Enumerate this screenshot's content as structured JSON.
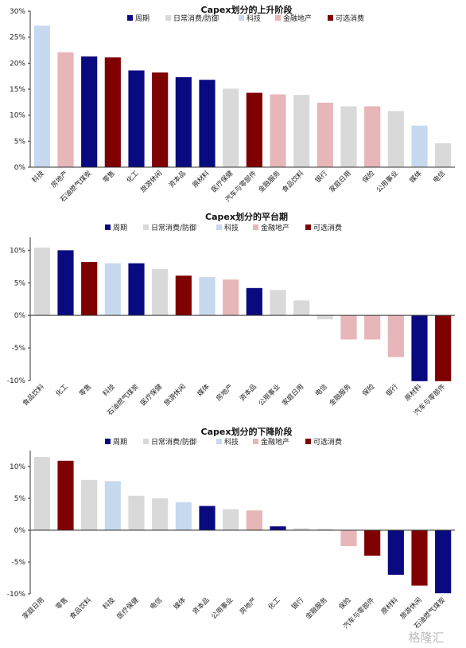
{
  "colors": {
    "周期": "#0a0a80",
    "日常消费/防御": "#d9d9d9",
    "科技": "#c6d9ef",
    "金融地产": "#e6b6b8",
    "可选消费": "#7f0000"
  },
  "watermark": "格隆汇",
  "chart_data": [
    {
      "type": "bar",
      "title": "Capex划分的上升阶段",
      "legend": [
        "周期",
        "日常消费/防御",
        "科技",
        "金融地产",
        "可选消费"
      ],
      "ylim": [
        0,
        30
      ],
      "yticks": [
        0,
        5,
        10,
        15,
        20,
        25,
        30
      ],
      "ytick_labels": [
        "0%",
        "5%",
        "10%",
        "15%",
        "20%",
        "25%",
        "30%"
      ],
      "categories": [
        "科技",
        "房地产",
        "石油燃气煤炭",
        "零售",
        "化工",
        "旅游休闲",
        "资本品",
        "原材料",
        "医疗保健",
        "汽车与零部件",
        "金融服务",
        "食品饮料",
        "银行",
        "家庭日用",
        "保险",
        "公用事业",
        "媒体",
        "电信"
      ],
      "values": [
        27.2,
        22.1,
        21.3,
        21.1,
        18.6,
        18.2,
        17.3,
        16.8,
        15.1,
        14.3,
        14.0,
        13.9,
        12.4,
        11.7,
        11.7,
        10.8,
        8.0,
        4.6
      ],
      "groups": [
        "科技",
        "金融地产",
        "周期",
        "可选消费",
        "周期",
        "可选消费",
        "周期",
        "周期",
        "日常消费/防御",
        "可选消费",
        "金融地产",
        "日常消费/防御",
        "金融地产",
        "日常消费/防御",
        "金融地产",
        "日常消费/防御",
        "科技",
        "日常消费/防御"
      ]
    },
    {
      "type": "bar",
      "title": "Capex划分的平台期",
      "legend": [
        "周期",
        "日常消费/防御",
        "科技",
        "金融地产",
        "可选消费"
      ],
      "ylim": [
        -10,
        12
      ],
      "yticks": [
        -10,
        -5,
        0,
        5,
        10
      ],
      "ytick_labels": [
        "-10%",
        "-5%",
        "0%",
        "5%",
        "10%"
      ],
      "categories": [
        "食品饮料",
        "化工",
        "零售",
        "科技",
        "石油燃气煤炭",
        "医疗保健",
        "旅游休闲",
        "媒体",
        "房地产",
        "资本品",
        "公用事业",
        "家庭日用",
        "电信",
        "金融服务",
        "保险",
        "银行",
        "原材料",
        "汽车与零部件"
      ],
      "values": [
        10.4,
        10.0,
        8.2,
        8.0,
        8.0,
        7.1,
        6.1,
        5.9,
        5.5,
        4.2,
        3.9,
        2.3,
        -0.6,
        -3.7,
        -3.7,
        -6.4,
        -10.1,
        -10.1
      ],
      "groups": [
        "日常消费/防御",
        "周期",
        "可选消费",
        "科技",
        "周期",
        "日常消费/防御",
        "可选消费",
        "科技",
        "金融地产",
        "周期",
        "日常消费/防御",
        "日常消费/防御",
        "日常消费/防御",
        "金融地产",
        "金融地产",
        "金融地产",
        "周期",
        "可选消费"
      ]
    },
    {
      "type": "bar",
      "title": "Capex划分的下降阶段",
      "legend": [
        "周期",
        "日常消费/防御",
        "科技",
        "金融地产",
        "可选消费"
      ],
      "ylim": [
        -10,
        12.5
      ],
      "yticks": [
        -10,
        -5,
        0,
        5,
        10
      ],
      "ytick_labels": [
        "-10%",
        "-5%",
        "0%",
        "5%",
        "10%"
      ],
      "categories": [
        "家庭日用",
        "零售",
        "食品饮料",
        "科技",
        "医疗保健",
        "电信",
        "媒体",
        "资本品",
        "公用事业",
        "房地产",
        "化工",
        "银行",
        "金融服务",
        "保险",
        "汽车与零部件",
        "原材料",
        "旅游休闲",
        "石油燃气煤炭"
      ],
      "values": [
        11.5,
        10.9,
        7.9,
        7.7,
        5.4,
        5.0,
        4.4,
        3.8,
        3.3,
        3.1,
        0.6,
        0.3,
        0.2,
        -2.5,
        -4.0,
        -7.0,
        -8.7,
        -9.9
      ],
      "groups": [
        "日常消费/防御",
        "可选消费",
        "日常消费/防御",
        "科技",
        "日常消费/防御",
        "日常消费/防御",
        "科技",
        "周期",
        "日常消费/防御",
        "金融地产",
        "周期",
        "日常消费/防御",
        "日常消费/防御",
        "金融地产",
        "可选消费",
        "周期",
        "可选消费",
        "周期"
      ]
    }
  ]
}
